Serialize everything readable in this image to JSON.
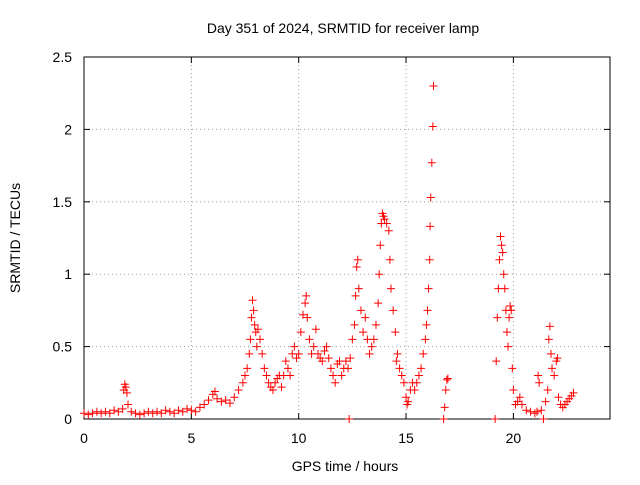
{
  "chart_data": {
    "type": "scatter",
    "title": "Day 351 of 2024, SRMTID for receiver lamp",
    "xlabel": "GPS time / hours",
    "ylabel": "SRMTID / TECUs",
    "xlim": [
      0,
      24.5
    ],
    "ylim": [
      0,
      2.5
    ],
    "xticks": [
      0,
      5,
      10,
      15,
      20
    ],
    "yticks": [
      0,
      0.5,
      1,
      1.5,
      2,
      2.5
    ],
    "grid": true,
    "marker": "+",
    "color": "#ff0000",
    "series": [
      {
        "name": "SRMTID",
        "points": [
          [
            0.0,
            0.04
          ],
          [
            0.2,
            0.03
          ],
          [
            0.4,
            0.04
          ],
          [
            0.6,
            0.05
          ],
          [
            0.8,
            0.04
          ],
          [
            1.0,
            0.05
          ],
          [
            1.2,
            0.04
          ],
          [
            1.4,
            0.06
          ],
          [
            1.6,
            0.05
          ],
          [
            1.8,
            0.07
          ],
          [
            1.85,
            0.2
          ],
          [
            1.9,
            0.24
          ],
          [
            1.95,
            0.22
          ],
          [
            2.0,
            0.18
          ],
          [
            2.05,
            0.1
          ],
          [
            2.2,
            0.05
          ],
          [
            2.4,
            0.04
          ],
          [
            2.6,
            0.03
          ],
          [
            2.8,
            0.04
          ],
          [
            3.0,
            0.05
          ],
          [
            3.2,
            0.04
          ],
          [
            3.4,
            0.05
          ],
          [
            3.6,
            0.04
          ],
          [
            3.8,
            0.06
          ],
          [
            4.0,
            0.05
          ],
          [
            4.2,
            0.04
          ],
          [
            4.4,
            0.06
          ],
          [
            4.6,
            0.05
          ],
          [
            4.8,
            0.07
          ],
          [
            5.0,
            0.06
          ],
          [
            5.2,
            0.05
          ],
          [
            5.4,
            0.08
          ],
          [
            5.6,
            0.1
          ],
          [
            5.8,
            0.13
          ],
          [
            6.0,
            0.17
          ],
          [
            6.1,
            0.19
          ],
          [
            6.2,
            0.14
          ],
          [
            6.4,
            0.12
          ],
          [
            6.6,
            0.13
          ],
          [
            6.8,
            0.11
          ],
          [
            7.0,
            0.15
          ],
          [
            7.2,
            0.2
          ],
          [
            7.4,
            0.25
          ],
          [
            7.5,
            0.3
          ],
          [
            7.6,
            0.35
          ],
          [
            7.7,
            0.45
          ],
          [
            7.75,
            0.55
          ],
          [
            7.8,
            0.7
          ],
          [
            7.85,
            0.82
          ],
          [
            7.9,
            0.75
          ],
          [
            7.95,
            0.65
          ],
          [
            8.0,
            0.6
          ],
          [
            8.05,
            0.5
          ],
          [
            8.1,
            0.62
          ],
          [
            8.2,
            0.55
          ],
          [
            8.3,
            0.45
          ],
          [
            8.4,
            0.35
          ],
          [
            8.5,
            0.3
          ],
          [
            8.6,
            0.25
          ],
          [
            8.7,
            0.22
          ],
          [
            8.8,
            0.2
          ],
          [
            8.9,
            0.25
          ],
          [
            9.0,
            0.28
          ],
          [
            9.1,
            0.3
          ],
          [
            9.2,
            0.22
          ],
          [
            9.3,
            0.3
          ],
          [
            9.4,
            0.4
          ],
          [
            9.5,
            0.35
          ],
          [
            9.6,
            0.3
          ],
          [
            9.7,
            0.45
          ],
          [
            9.8,
            0.5
          ],
          [
            9.9,
            0.42
          ],
          [
            10.0,
            0.45
          ],
          [
            10.1,
            0.6
          ],
          [
            10.2,
            0.72
          ],
          [
            10.3,
            0.8
          ],
          [
            10.35,
            0.85
          ],
          [
            10.4,
            0.7
          ],
          [
            10.5,
            0.55
          ],
          [
            10.6,
            0.45
          ],
          [
            10.7,
            0.5
          ],
          [
            10.8,
            0.62
          ],
          [
            10.9,
            0.45
          ],
          [
            11.0,
            0.42
          ],
          [
            11.1,
            0.4
          ],
          [
            11.2,
            0.47
          ],
          [
            11.3,
            0.5
          ],
          [
            11.4,
            0.42
          ],
          [
            11.5,
            0.35
          ],
          [
            11.6,
            0.3
          ],
          [
            11.7,
            0.25
          ],
          [
            11.8,
            0.38
          ],
          [
            11.9,
            0.4
          ],
          [
            12.0,
            0.3
          ],
          [
            12.1,
            0.35
          ],
          [
            12.2,
            0.4
          ],
          [
            12.3,
            0.35
          ],
          [
            12.35,
            0.0
          ],
          [
            12.4,
            0.42
          ],
          [
            12.5,
            0.55
          ],
          [
            12.6,
            0.65
          ],
          [
            12.65,
            0.85
          ],
          [
            12.7,
            1.05
          ],
          [
            12.75,
            1.1
          ],
          [
            12.8,
            0.9
          ],
          [
            12.9,
            0.75
          ],
          [
            13.0,
            0.6
          ],
          [
            13.1,
            0.7
          ],
          [
            13.2,
            0.55
          ],
          [
            13.3,
            0.45
          ],
          [
            13.4,
            0.5
          ],
          [
            13.5,
            0.55
          ],
          [
            13.6,
            0.65
          ],
          [
            13.7,
            0.8
          ],
          [
            13.75,
            1.0
          ],
          [
            13.8,
            1.2
          ],
          [
            13.85,
            1.35
          ],
          [
            13.9,
            1.42
          ],
          [
            13.95,
            1.4
          ],
          [
            14.0,
            1.38
          ],
          [
            14.1,
            1.35
          ],
          [
            14.2,
            1.3
          ],
          [
            14.25,
            1.1
          ],
          [
            14.3,
            0.9
          ],
          [
            14.4,
            0.75
          ],
          [
            14.5,
            0.6
          ],
          [
            14.55,
            0.4
          ],
          [
            14.6,
            0.45
          ],
          [
            14.7,
            0.35
          ],
          [
            14.8,
            0.3
          ],
          [
            14.9,
            0.25
          ],
          [
            15.0,
            0.15
          ],
          [
            15.05,
            0.1
          ],
          [
            15.1,
            0.12
          ],
          [
            15.2,
            0.2
          ],
          [
            15.3,
            0.25
          ],
          [
            15.4,
            0.2
          ],
          [
            15.5,
            0.25
          ],
          [
            15.6,
            0.3
          ],
          [
            15.7,
            0.35
          ],
          [
            15.8,
            0.45
          ],
          [
            15.9,
            0.55
          ],
          [
            15.95,
            0.65
          ],
          [
            16.0,
            0.75
          ],
          [
            16.05,
            0.9
          ],
          [
            16.1,
            1.1
          ],
          [
            16.12,
            1.33
          ],
          [
            16.15,
            1.53
          ],
          [
            16.2,
            1.77
          ],
          [
            16.25,
            2.02
          ],
          [
            16.28,
            2.3
          ],
          [
            16.75,
            0.0
          ],
          [
            16.8,
            0.08
          ],
          [
            16.85,
            0.2
          ],
          [
            16.9,
            0.27
          ],
          [
            16.95,
            0.28
          ],
          [
            19.15,
            0.0
          ],
          [
            19.2,
            0.4
          ],
          [
            19.25,
            0.7
          ],
          [
            19.3,
            0.9
          ],
          [
            19.35,
            1.1
          ],
          [
            19.4,
            1.26
          ],
          [
            19.45,
            1.2
          ],
          [
            19.5,
            1.15
          ],
          [
            19.55,
            1.0
          ],
          [
            19.6,
            0.9
          ],
          [
            19.65,
            0.75
          ],
          [
            19.7,
            0.6
          ],
          [
            19.75,
            0.5
          ],
          [
            19.8,
            0.7
          ],
          [
            19.85,
            0.78
          ],
          [
            19.9,
            0.75
          ],
          [
            19.95,
            0.35
          ],
          [
            20.0,
            0.2
          ],
          [
            20.1,
            0.1
          ],
          [
            20.2,
            0.12
          ],
          [
            20.3,
            0.15
          ],
          [
            20.4,
            0.1
          ],
          [
            20.6,
            0.06
          ],
          [
            20.8,
            0.05
          ],
          [
            21.0,
            0.04
          ],
          [
            21.1,
            0.05
          ],
          [
            21.15,
            0.3
          ],
          [
            21.2,
            0.25
          ],
          [
            21.3,
            0.06
          ],
          [
            21.4,
            0.0
          ],
          [
            21.5,
            0.12
          ],
          [
            21.6,
            0.2
          ],
          [
            21.65,
            0.55
          ],
          [
            21.7,
            0.64
          ],
          [
            21.75,
            0.45
          ],
          [
            21.8,
            0.35
          ],
          [
            21.9,
            0.3
          ],
          [
            22.0,
            0.4
          ],
          [
            22.05,
            0.42
          ],
          [
            22.1,
            0.15
          ],
          [
            22.2,
            0.1
          ],
          [
            22.3,
            0.08
          ],
          [
            22.4,
            0.1
          ],
          [
            22.5,
            0.12
          ],
          [
            22.6,
            0.14
          ],
          [
            22.7,
            0.16
          ],
          [
            22.8,
            0.18
          ]
        ]
      }
    ]
  }
}
